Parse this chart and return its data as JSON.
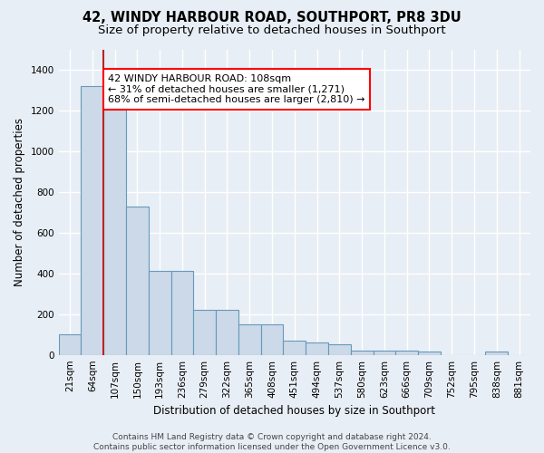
{
  "title1": "42, WINDY HARBOUR ROAD, SOUTHPORT, PR8 3DU",
  "title2": "Size of property relative to detached houses in Southport",
  "xlabel": "Distribution of detached houses by size in Southport",
  "ylabel": "Number of detached properties",
  "categories": [
    "21sqm",
    "64sqm",
    "107sqm",
    "150sqm",
    "193sqm",
    "236sqm",
    "279sqm",
    "322sqm",
    "365sqm",
    "408sqm",
    "451sqm",
    "494sqm",
    "537sqm",
    "580sqm",
    "623sqm",
    "666sqm",
    "709sqm",
    "752sqm",
    "795sqm",
    "838sqm",
    "881sqm"
  ],
  "values": [
    100,
    1320,
    1320,
    730,
    415,
    415,
    220,
    220,
    150,
    150,
    70,
    60,
    50,
    20,
    20,
    20,
    18,
    0,
    0,
    18,
    0
  ],
  "bar_color": "#ccd9e8",
  "bar_edge_color": "#6699bb",
  "vline_index": 2,
  "vline_color": "#bb2222",
  "annotation_text": "42 WINDY HARBOUR ROAD: 108sqm\n← 31% of detached houses are smaller (1,271)\n68% of semi-detached houses are larger (2,810) →",
  "annotation_box_facecolor": "white",
  "annotation_box_edgecolor": "red",
  "ylim": [
    0,
    1500
  ],
  "yticks": [
    0,
    200,
    400,
    600,
    800,
    1000,
    1200,
    1400
  ],
  "background_color": "#e8eef5",
  "grid_color": "#ffffff",
  "footer": "Contains HM Land Registry data © Crown copyright and database right 2024.\nContains public sector information licensed under the Open Government Licence v3.0.",
  "title1_fontsize": 10.5,
  "title2_fontsize": 9.5,
  "xlabel_fontsize": 8.5,
  "ylabel_fontsize": 8.5,
  "tick_fontsize": 7.5,
  "annotation_fontsize": 8,
  "footer_fontsize": 6.5
}
